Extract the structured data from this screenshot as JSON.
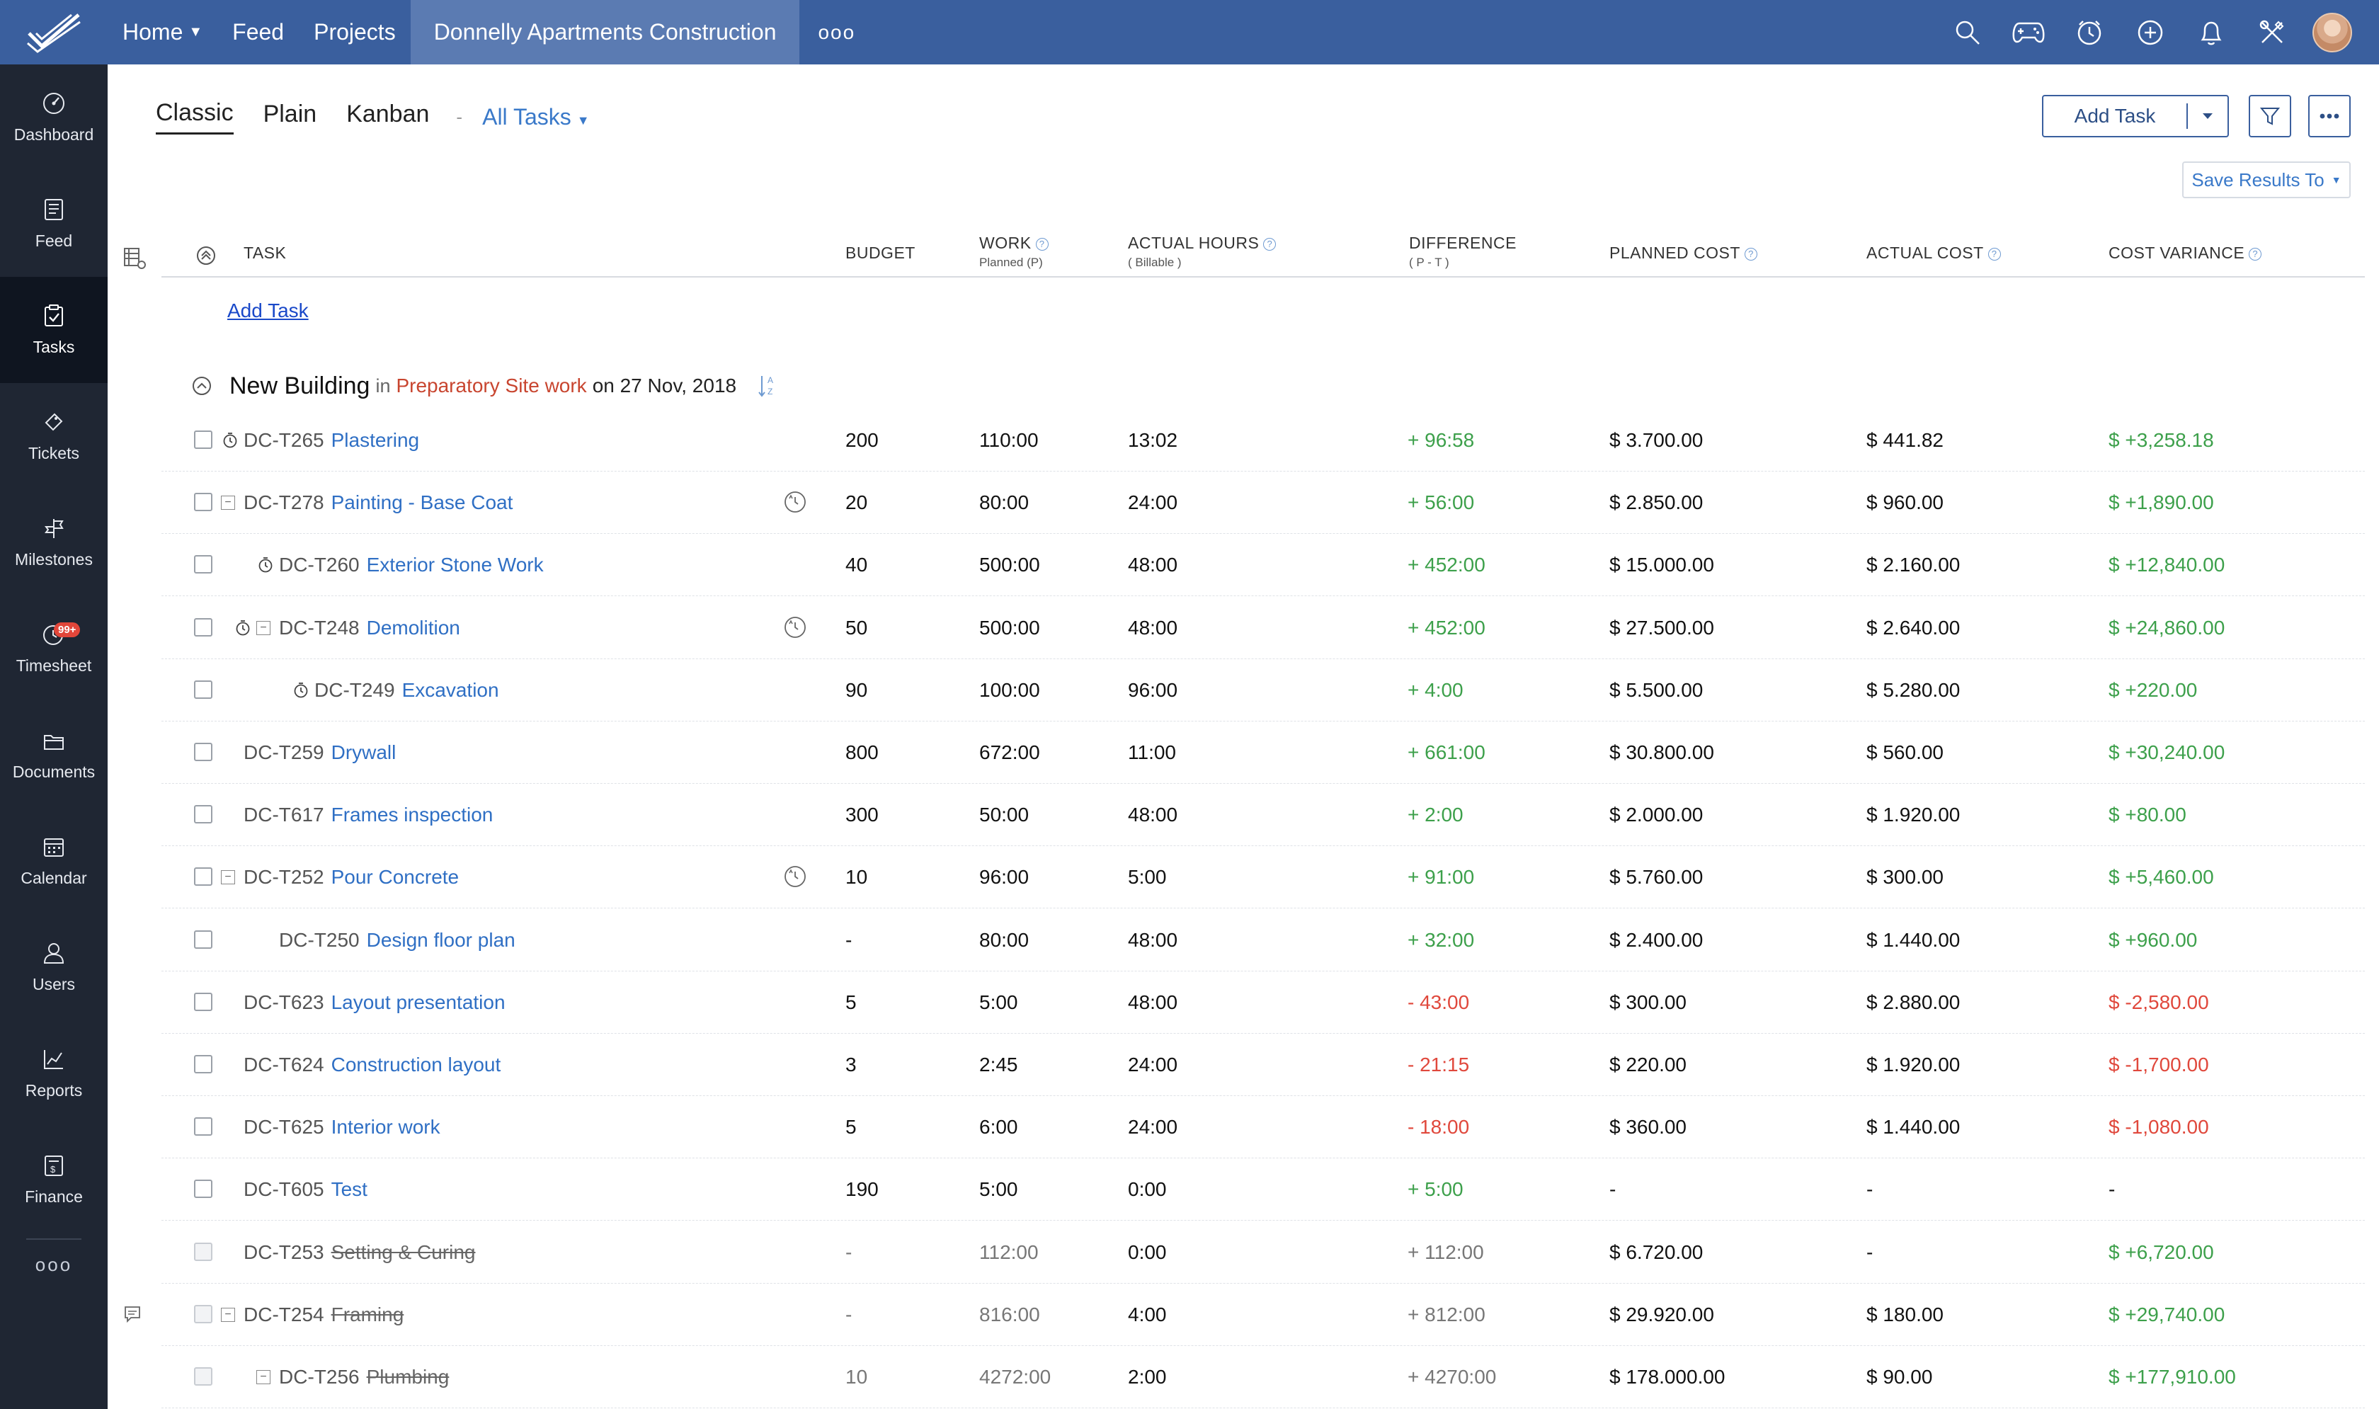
{
  "topbar": {
    "nav": [
      {
        "label": "Home",
        "has_caret": true
      },
      {
        "label": "Feed",
        "has_caret": false
      },
      {
        "label": "Projects",
        "has_caret": false
      }
    ],
    "active_project": "Donnelly Apartments Construction",
    "more_label": "ooo",
    "icons": [
      "search-icon",
      "gamepad-icon",
      "clock-icon",
      "add-circle-icon",
      "bell-icon",
      "tools-icon",
      "avatar"
    ]
  },
  "sidebar": {
    "items": [
      {
        "label": "Dashboard",
        "icon": "dashboard-icon"
      },
      {
        "label": "Feed",
        "icon": "feed-icon"
      },
      {
        "label": "Tasks",
        "icon": "tasks-icon",
        "active": true
      },
      {
        "label": "Tickets",
        "icon": "ticket-icon"
      },
      {
        "label": "Milestones",
        "icon": "milestone-icon"
      },
      {
        "label": "Timesheet",
        "icon": "timesheet-icon",
        "badge": "99+"
      },
      {
        "label": "Documents",
        "icon": "documents-icon"
      },
      {
        "label": "Calendar",
        "icon": "calendar-icon"
      },
      {
        "label": "Users",
        "icon": "users-icon"
      },
      {
        "label": "Reports",
        "icon": "reports-icon"
      },
      {
        "label": "Finance",
        "icon": "finance-icon"
      }
    ],
    "more_label": "ooo"
  },
  "views": {
    "tabs": [
      "Classic",
      "Plain",
      "Kanban"
    ],
    "active": "Classic",
    "separator": "-",
    "filter_label": "All Tasks"
  },
  "toolbar": {
    "add_task_label": "Add Task",
    "save_results_label": "Save Results To"
  },
  "table": {
    "columns": {
      "task": "TASK",
      "budget": "BUDGET",
      "work": "WORK",
      "work_sub": "Planned (P)",
      "actual": "ACTUAL HOURS",
      "actual_sub": "( Billable )",
      "difference": "DIFFERENCE",
      "difference_sub": "( P - T )",
      "planned_cost": "PLANNED COST",
      "actual_cost": "ACTUAL COST",
      "cost_variance": "COST VARIANCE"
    },
    "add_task_link": "Add Task",
    "group": {
      "name": "New Building",
      "in_label": "in",
      "list_name": "Preparatory Site work",
      "on_label": "on 27 Nov, 2018"
    },
    "rows": [
      {
        "id": "DC-T265",
        "name": "Plastering",
        "indent": 0,
        "timer": true,
        "toggle": false,
        "reminder": false,
        "done": false,
        "budget": "200",
        "work": "110:00",
        "actual": "13:02",
        "difference": "+ 96:58",
        "diff_sign": "pos",
        "planned_cost": "$ 3.700.00",
        "actual_cost": "$ 441.82",
        "variance": "$ +3,258.18",
        "var_sign": "pos"
      },
      {
        "id": "DC-T278",
        "name": "Painting - Base Coat",
        "indent": 0,
        "timer": false,
        "toggle": true,
        "reminder": true,
        "done": false,
        "budget": "20",
        "work": "80:00",
        "actual": "24:00",
        "difference": "+ 56:00",
        "diff_sign": "pos",
        "planned_cost": "$ 2.850.00",
        "actual_cost": "$ 960.00",
        "variance": "$ +1,890.00",
        "var_sign": "pos"
      },
      {
        "id": "DC-T260",
        "name": "Exterior Stone Work",
        "indent": 1,
        "timer": true,
        "toggle": false,
        "reminder": false,
        "done": false,
        "budget": "40",
        "work": "500:00",
        "actual": "48:00",
        "difference": "+ 452:00",
        "diff_sign": "pos",
        "planned_cost": "$ 15.000.00",
        "actual_cost": "$ 2.160.00",
        "variance": "$ +12,840.00",
        "var_sign": "pos"
      },
      {
        "id": "DC-T248",
        "name": "Demolition",
        "indent": 1,
        "timer": true,
        "toggle": true,
        "reminder": true,
        "done": false,
        "budget": "50",
        "work": "500:00",
        "actual": "48:00",
        "difference": "+ 452:00",
        "diff_sign": "pos",
        "planned_cost": "$ 27.500.00",
        "actual_cost": "$ 2.640.00",
        "variance": "$ +24,860.00",
        "var_sign": "pos"
      },
      {
        "id": "DC-T249",
        "name": "Excavation",
        "indent": 2,
        "timer": true,
        "toggle": false,
        "reminder": false,
        "done": false,
        "budget": "90",
        "work": "100:00",
        "actual": "96:00",
        "difference": "+ 4:00",
        "diff_sign": "pos",
        "planned_cost": "$ 5.500.00",
        "actual_cost": "$ 5.280.00",
        "variance": "$ +220.00",
        "var_sign": "pos"
      },
      {
        "id": "DC-T259",
        "name": "Drywall",
        "indent": 0,
        "timer": false,
        "toggle": false,
        "reminder": false,
        "done": false,
        "budget": "800",
        "work": "672:00",
        "actual": "11:00",
        "difference": "+ 661:00",
        "diff_sign": "pos",
        "planned_cost": "$ 30.800.00",
        "actual_cost": "$ 560.00",
        "variance": "$ +30,240.00",
        "var_sign": "pos"
      },
      {
        "id": "DC-T617",
        "name": "Frames inspection",
        "indent": 0,
        "timer": false,
        "toggle": false,
        "reminder": false,
        "done": false,
        "budget": "300",
        "work": "50:00",
        "actual": "48:00",
        "difference": "+ 2:00",
        "diff_sign": "pos",
        "planned_cost": "$ 2.000.00",
        "actual_cost": "$ 1.920.00",
        "variance": "$ +80.00",
        "var_sign": "pos"
      },
      {
        "id": "DC-T252",
        "name": "Pour Concrete",
        "indent": 0,
        "timer": false,
        "toggle": true,
        "reminder": true,
        "done": false,
        "budget": "10",
        "work": "96:00",
        "actual": "5:00",
        "difference": "+ 91:00",
        "diff_sign": "pos",
        "planned_cost": "$ 5.760.00",
        "actual_cost": "$ 300.00",
        "variance": "$ +5,460.00",
        "var_sign": "pos"
      },
      {
        "id": "DC-T250",
        "name": "Design floor plan",
        "indent": 1,
        "timer": false,
        "toggle": false,
        "reminder": false,
        "done": false,
        "budget": "-",
        "work": "80:00",
        "actual": "48:00",
        "difference": "+ 32:00",
        "diff_sign": "pos",
        "planned_cost": "$ 2.400.00",
        "actual_cost": "$ 1.440.00",
        "variance": "$ +960.00",
        "var_sign": "pos"
      },
      {
        "id": "DC-T623",
        "name": "Layout presentation",
        "indent": 0,
        "timer": false,
        "toggle": false,
        "reminder": false,
        "done": false,
        "budget": "5",
        "work": "5:00",
        "actual": "48:00",
        "difference": "- 43:00",
        "diff_sign": "neg",
        "planned_cost": "$ 300.00",
        "actual_cost": "$ 2.880.00",
        "variance": "$ -2,580.00",
        "var_sign": "neg"
      },
      {
        "id": "DC-T624",
        "name": "Construction layout",
        "indent": 0,
        "timer": false,
        "toggle": false,
        "reminder": false,
        "done": false,
        "budget": "3",
        "work": "2:45",
        "actual": "24:00",
        "difference": "- 21:15",
        "diff_sign": "neg",
        "planned_cost": "$ 220.00",
        "actual_cost": "$ 1.920.00",
        "variance": "$ -1,700.00",
        "var_sign": "neg"
      },
      {
        "id": "DC-T625",
        "name": "Interior work",
        "indent": 0,
        "timer": false,
        "toggle": false,
        "reminder": false,
        "done": false,
        "budget": "5",
        "work": "6:00",
        "actual": "24:00",
        "difference": "- 18:00",
        "diff_sign": "neg",
        "planned_cost": "$ 360.00",
        "actual_cost": "$ 1.440.00",
        "variance": "$ -1,080.00",
        "var_sign": "neg"
      },
      {
        "id": "DC-T605",
        "name": "Test",
        "indent": 0,
        "timer": false,
        "toggle": false,
        "reminder": false,
        "done": false,
        "budget": "190",
        "work": "5:00",
        "actual": "0:00",
        "difference": "+ 5:00",
        "diff_sign": "pos",
        "planned_cost": "-",
        "actual_cost": "-",
        "variance": "-",
        "var_sign": "none"
      },
      {
        "id": "DC-T253",
        "name": "Setting & Curing",
        "indent": 0,
        "timer": false,
        "toggle": false,
        "reminder": false,
        "done": true,
        "budget": "-",
        "work": "112:00",
        "actual": "0:00",
        "difference": "+ 112:00",
        "diff_sign": "gray",
        "planned_cost": "$ 6.720.00",
        "actual_cost": "-",
        "variance": "$ +6,720.00",
        "var_sign": "pos"
      },
      {
        "id": "DC-T254",
        "name": "Framing",
        "indent": 0,
        "timer": false,
        "toggle": true,
        "reminder": false,
        "done": true,
        "note": true,
        "budget": "-",
        "work": "816:00",
        "actual": "4:00",
        "difference": "+ 812:00",
        "diff_sign": "gray",
        "planned_cost": "$ 29.920.00",
        "actual_cost": "$ 180.00",
        "variance": "$ +29,740.00",
        "var_sign": "pos"
      },
      {
        "id": "DC-T256",
        "name": "Plumbing",
        "indent": 1,
        "timer": false,
        "toggle": true,
        "reminder": false,
        "done": true,
        "budget": "10",
        "work": "4272:00",
        "actual": "2:00",
        "difference": "+ 4270:00",
        "diff_sign": "gray",
        "planned_cost": "$ 178.000.00",
        "actual_cost": "$ 90.00",
        "variance": "$ +177,910.00",
        "var_sign": "pos"
      }
    ]
  }
}
